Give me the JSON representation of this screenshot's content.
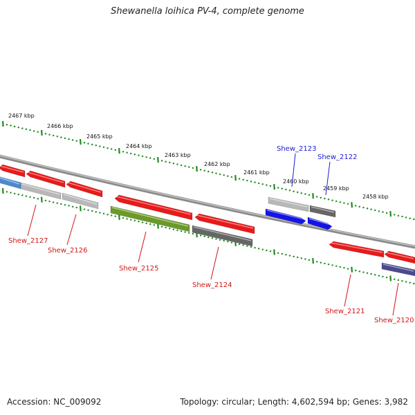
{
  "title": "Shewanella loihica PV-4, complete genome",
  "footer": {
    "accession": "Accession: NC_009092",
    "topology": "Topology: circular; Length: 4,602,594 bp; Genes: 3,982"
  },
  "colors": {
    "backbone": "#8a8a8a",
    "ticks": "#1e8a1e",
    "tick_label": "#111111",
    "gene_label_red": "#d21414",
    "gene_label_blue": "#1a1ad2"
  },
  "scale": {
    "unit": "kbp",
    "ticks": [
      {
        "label": "2467 kbp"
      },
      {
        "label": "2466 kbp"
      },
      {
        "label": "2465 kbp"
      },
      {
        "label": "2464 kbp"
      },
      {
        "label": "2463 kbp"
      },
      {
        "label": "2462 kbp"
      },
      {
        "label": "2461 kbp"
      },
      {
        "label": "2460 kbp"
      },
      {
        "label": "2459 kbp"
      },
      {
        "label": "2458 kbp"
      }
    ]
  },
  "genes": [
    {
      "name": "Shew_2127",
      "strand": "minus",
      "color": "red",
      "labeled": true
    },
    {
      "name": "Shew_2126",
      "strand": "minus",
      "color": "red",
      "labeled": true
    },
    {
      "name": "Shew_2125",
      "strand": "minus",
      "color": "red",
      "labeled": true
    },
    {
      "name": "Shew_2124",
      "strand": "minus",
      "color": "red",
      "labeled": true
    },
    {
      "name": "Shew_2123",
      "strand": "plus",
      "color": "blue",
      "labeled": true
    },
    {
      "name": "Shew_2122",
      "strand": "plus",
      "color": "blue",
      "labeled": true
    },
    {
      "name": "Shew_2121",
      "strand": "minus",
      "color": "red",
      "labeled": true
    },
    {
      "name": "Shew_2120",
      "strand": "minus",
      "color": "red",
      "labeled": true
    }
  ],
  "feature_colors": {
    "red": "#e81a1a",
    "blue": "#1414e6",
    "light_blue": "#4a8ad0",
    "gray_light": "#b8b8b8",
    "gray_dark": "#666666",
    "olive": "#6c9a28",
    "navy": "#4a4a8e"
  }
}
